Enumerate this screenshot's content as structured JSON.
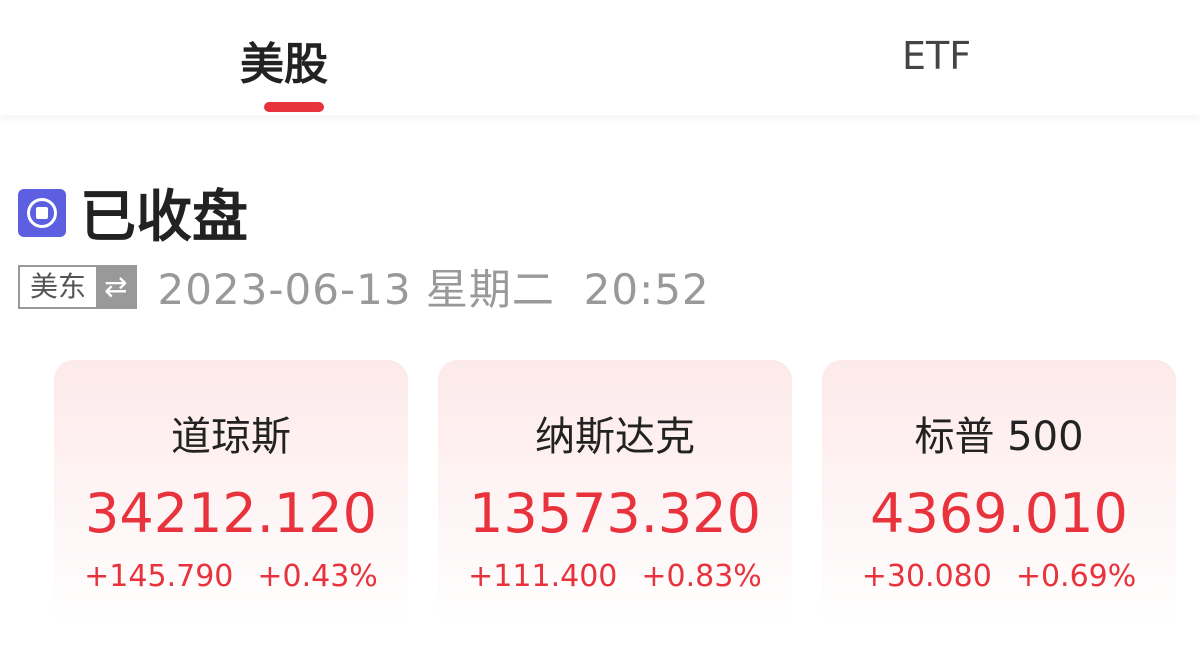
{
  "tabs": [
    {
      "label": "美股",
      "active": true
    },
    {
      "label": "ETF",
      "active": false
    }
  ],
  "market": {
    "status": "已收盘",
    "timezone": "美东",
    "swap_icon": "⇄",
    "datetime": "2023-06-13 星期二  20:52"
  },
  "colors": {
    "up": "#e8323c",
    "accent": "#e8323c",
    "status_icon": "#5b5fe0"
  },
  "indices": [
    {
      "name": "道琼斯",
      "price": "34212.120",
      "change": "+145.790",
      "pct": "+0.43%"
    },
    {
      "name": "纳斯达克",
      "price": "13573.320",
      "change": "+111.400",
      "pct": "+0.83%"
    },
    {
      "name": "标普 500",
      "price": "4369.010",
      "change": "+30.080",
      "pct": "+0.69%"
    }
  ]
}
